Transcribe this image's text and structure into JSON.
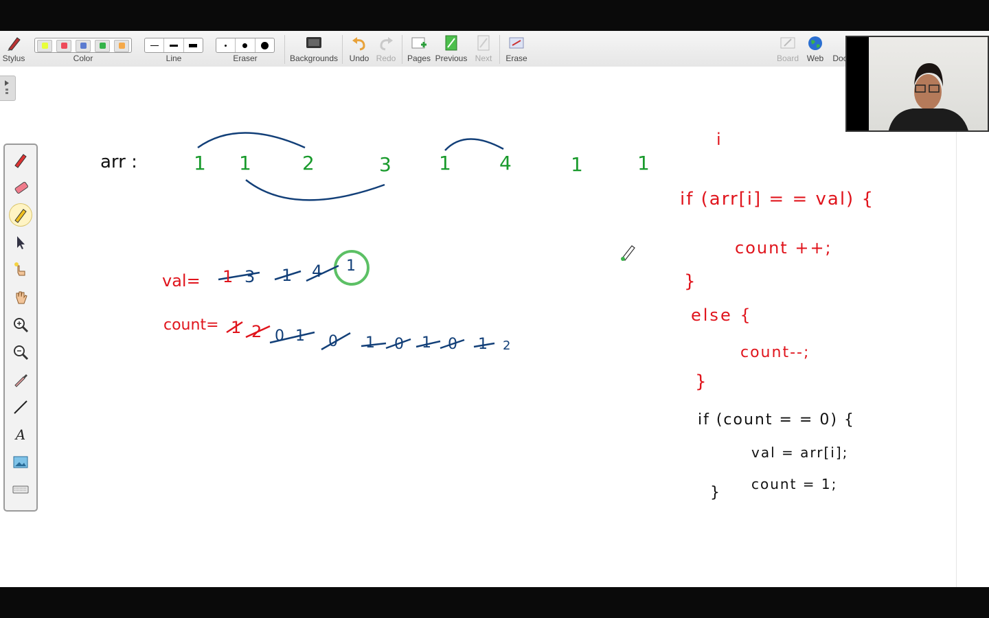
{
  "toolbar": {
    "stylus": "Stylus",
    "color": "Color",
    "line": "Line",
    "eraser": "Eraser",
    "backgrounds": "Backgrounds",
    "undo": "Undo",
    "redo": "Redo",
    "pages": "Pages",
    "previous": "Previous",
    "next": "Next",
    "erase": "Erase",
    "board": "Board",
    "web": "Web",
    "doc": "Doc",
    "colors": [
      "#e8ff3a",
      "#ee4a5a",
      "#5b7bd0",
      "#34b34a",
      "#f5a94a"
    ]
  },
  "sidebar": {
    "tools": [
      "pen-icon",
      "highlighter-icon",
      "marker-icon",
      "select-icon",
      "pointer-icon",
      "hand-icon",
      "zoom-in-icon",
      "zoom-out-icon",
      "dropper-icon",
      "line-icon",
      "text-icon",
      "image-icon",
      "keyboard-icon"
    ],
    "text_tool_label": "A"
  },
  "board": {
    "arr_label": "arr :",
    "arr_values": [
      "1",
      "1",
      "2",
      "3",
      "1",
      "4",
      "1",
      "1"
    ],
    "val_label": "val=",
    "val_sequence": [
      "1",
      "3",
      "1",
      "4"
    ],
    "val_final": "1",
    "count_label": "count=",
    "count_red": [
      "1",
      "2"
    ],
    "count_blue": [
      "0",
      "1",
      "0",
      "1",
      "0",
      "1",
      "0",
      "1"
    ],
    "count_final": "2",
    "code_i": "i",
    "code_line1": "if (arr[i] = = val) {",
    "code_line2": "count ++;",
    "code_line3": "}",
    "code_line4": "else  {",
    "code_line5": "count--;",
    "code_line6": "}",
    "code_line7": "if (count = = 0)  {",
    "code_line8": "val = arr[i];",
    "code_line9": "count = 1;",
    "code_line10": "}"
  }
}
